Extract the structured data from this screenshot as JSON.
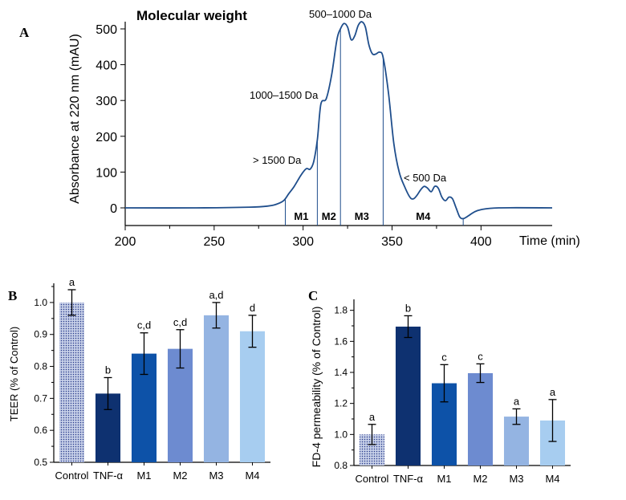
{
  "colors": {
    "line": "#1f4e8c",
    "axis": "#000000",
    "control": "#b9c3de",
    "tnf": "#0e3170",
    "m1": "#0d52a8",
    "m2": "#6d8bd0",
    "m3": "#94b4e2",
    "m4": "#a7cdf0"
  },
  "panels": {
    "a": "A",
    "b": "B",
    "c": "C"
  },
  "chart_data": [
    {
      "id": "A",
      "type": "line",
      "title": "Molecular weight",
      "xlabel": "Time (min)",
      "ylabel": "Absorbance at 220 nm (mAU)",
      "xlim": [
        200,
        440
      ],
      "ylim": [
        -50,
        530
      ],
      "xticks": [
        200,
        250,
        300,
        350,
        400
      ],
      "yticks": [
        0,
        100,
        200,
        300,
        400,
        500
      ],
      "series": [
        {
          "name": "Absorbance",
          "x": [
            200,
            240,
            270,
            280,
            285,
            289,
            292,
            295,
            298,
            300,
            302,
            304,
            306,
            308,
            310,
            313,
            316,
            319,
            321,
            323,
            325,
            327,
            329,
            331,
            333,
            335,
            337,
            339,
            341,
            343,
            345,
            348,
            351,
            354,
            357,
            360,
            362,
            364,
            366,
            368,
            370,
            372,
            374,
            376,
            378,
            380,
            382,
            384,
            386,
            388,
            390,
            393,
            396,
            400,
            410,
            440
          ],
          "y": [
            0,
            0,
            2,
            5,
            10,
            20,
            40,
            60,
            85,
            100,
            110,
            108,
            130,
            190,
            290,
            305,
            370,
            470,
            500,
            515,
            505,
            470,
            480,
            510,
            520,
            505,
            455,
            430,
            430,
            435,
            420,
            320,
            180,
            100,
            60,
            30,
            25,
            35,
            50,
            60,
            55,
            45,
            60,
            55,
            30,
            20,
            30,
            25,
            0,
            -25,
            -30,
            -22,
            -12,
            -5,
            0,
            0
          ]
        }
      ],
      "annotations": [
        "> 1500 Da",
        "1000–1500 Da",
        "500–1000 Da",
        "< 500 Da"
      ],
      "fractions": [
        {
          "label": "M1",
          "from": 290,
          "to": 308
        },
        {
          "label": "M2",
          "from": 308,
          "to": 321
        },
        {
          "label": "M3",
          "from": 321,
          "to": 345
        },
        {
          "label": "M4",
          "from": 345,
          "to": 390
        }
      ]
    },
    {
      "id": "B",
      "type": "bar",
      "ylabel": "TEER (% of Control)",
      "ylim": [
        0.5,
        1.05
      ],
      "yticks": [
        "0.5",
        "0.6",
        "0.7",
        "0.8",
        "0.9",
        "1.0"
      ],
      "categories": [
        "Control",
        "TNF-α",
        "M1",
        "M2",
        "M3",
        "M4"
      ],
      "values": [
        1.0,
        0.715,
        0.84,
        0.855,
        0.96,
        0.91
      ],
      "errors": [
        0.04,
        0.05,
        0.065,
        0.06,
        0.04,
        0.05
      ],
      "letters": [
        "a",
        "b",
        "c,d",
        "c,d",
        "a,d",
        "d"
      ]
    },
    {
      "id": "C",
      "type": "bar",
      "ylabel": "FD-4 permeability (% of Control)",
      "ylim": [
        0.8,
        1.85
      ],
      "yticks": [
        "0.8",
        "1.0",
        "1.2",
        "1.4",
        "1.6",
        "1.8"
      ],
      "categories": [
        "Control",
        "TNF-α",
        "M1",
        "M2",
        "M3",
        "M4"
      ],
      "values": [
        1.0,
        1.695,
        1.33,
        1.395,
        1.115,
        1.09
      ],
      "errors": [
        0.065,
        0.07,
        0.12,
        0.06,
        0.05,
        0.135
      ],
      "letters": [
        "a",
        "b",
        "c",
        "c",
        "a",
        "a"
      ]
    }
  ]
}
